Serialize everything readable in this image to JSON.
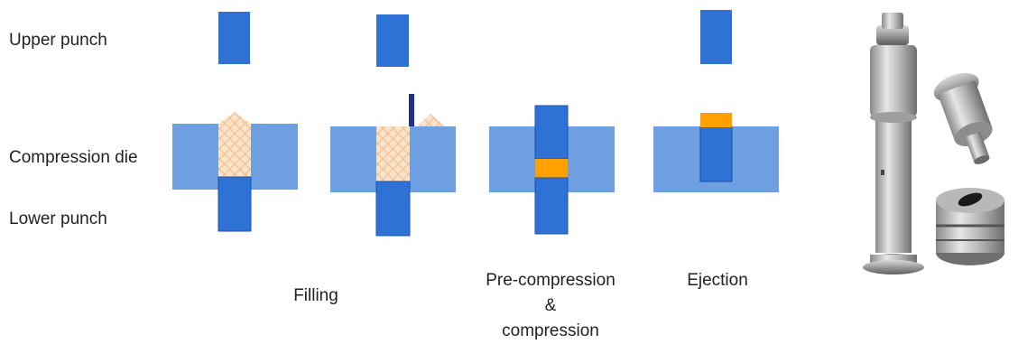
{
  "row_labels": {
    "upper_punch": "Upper punch",
    "compression_die": "Compression die",
    "lower_punch": "Lower punch"
  },
  "stages": [
    {
      "label": "Filling"
    },
    {
      "label_lines": [
        "Pre-compression",
        "&",
        "compression"
      ]
    },
    {
      "label": "Ejection"
    }
  ],
  "colors": {
    "punch": "#2f72d6",
    "die": "#6e9fe0",
    "powder": "#f7d4b0",
    "tablet": "#ffa000",
    "feed_shoe": "#1f2f90"
  },
  "photo": {
    "subject": "punch-and-die-tooling-photo"
  }
}
